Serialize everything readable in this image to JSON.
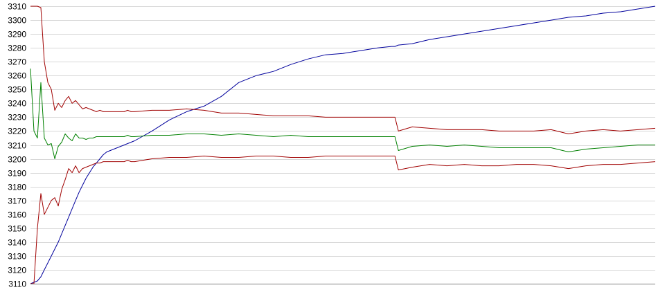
{
  "chart_data": {
    "type": "line",
    "title": "",
    "xlabel": "",
    "ylabel": "",
    "ylim": [
      3110,
      3310
    ],
    "xlim": [
      0,
      180
    ],
    "y_ticks": [
      "3110",
      "3120",
      "3130",
      "3140",
      "3150",
      "3160",
      "3170",
      "3180",
      "3190",
      "3200",
      "3210",
      "3220",
      "3230",
      "3240",
      "3250",
      "3260",
      "3270",
      "3280",
      "3290",
      "3300",
      "3310"
    ],
    "grid": true,
    "legend": "none",
    "x": [
      0,
      1,
      2,
      3,
      4,
      5,
      6,
      7,
      8,
      9,
      10,
      11,
      12,
      13,
      14,
      15,
      16,
      17,
      18,
      19,
      20,
      21,
      22,
      23,
      24,
      25,
      26,
      27,
      28,
      29,
      30,
      35,
      40,
      45,
      50,
      55,
      60,
      65,
      70,
      75,
      80,
      85,
      90,
      95,
      100,
      104,
      105,
      106,
      110,
      115,
      120,
      125,
      130,
      135,
      140,
      145,
      150,
      155,
      160,
      165,
      170,
      175,
      180
    ],
    "series": [
      {
        "color": "#00009c",
        "values": [
          3110,
          3111,
          3112,
          3115,
          3120,
          3125,
          3130,
          3135,
          3140,
          3146,
          3152,
          3158,
          3164,
          3170,
          3176,
          3181,
          3186,
          3190,
          3194,
          3197,
          3200,
          3203,
          3205,
          3206,
          3207,
          3208,
          3209,
          3210,
          3211,
          3212,
          3213,
          3220,
          3228,
          3234,
          3238,
          3245,
          3255,
          3260,
          3263,
          3268,
          3272,
          3275,
          3276,
          3278,
          3280,
          3281,
          3281,
          3282,
          3283,
          3286,
          3288,
          3290,
          3292,
          3294,
          3296,
          3298,
          3300,
          3302,
          3303,
          3305,
          3306,
          3308,
          3310
        ]
      },
      {
        "color": "#a00000",
        "values": [
          3310,
          3310,
          3310,
          3309,
          3270,
          3255,
          3250,
          3235,
          3240,
          3237,
          3242,
          3245,
          3240,
          3242,
          3239,
          3236,
          3237,
          3236,
          3235,
          3234,
          3235,
          3234,
          3234,
          3234,
          3234,
          3234,
          3234,
          3234,
          3235,
          3234,
          3234,
          3235,
          3235,
          3236,
          3235,
          3233,
          3233,
          3232,
          3231,
          3231,
          3231,
          3230,
          3230,
          3230,
          3230,
          3230,
          3230,
          3220,
          3223,
          3222,
          3221,
          3221,
          3221,
          3220,
          3220,
          3220,
          3221,
          3218,
          3220,
          3221,
          3220,
          3221,
          3222
        ]
      },
      {
        "color": "#008000",
        "values": [
          3265,
          3220,
          3215,
          3255,
          3215,
          3210,
          3211,
          3200,
          3209,
          3212,
          3218,
          3215,
          3213,
          3218,
          3215,
          3215,
          3214,
          3215,
          3215,
          3216,
          3216,
          3216,
          3216,
          3216,
          3216,
          3216,
          3216,
          3216,
          3217,
          3216,
          3216,
          3217,
          3217,
          3218,
          3218,
          3217,
          3218,
          3217,
          3216,
          3217,
          3216,
          3216,
          3216,
          3216,
          3216,
          3216,
          3216,
          3206,
          3209,
          3210,
          3209,
          3210,
          3209,
          3208,
          3208,
          3208,
          3208,
          3205,
          3207,
          3208,
          3209,
          3210,
          3210
        ]
      },
      {
        "color": "#a00000",
        "values": [
          3110,
          3110,
          3150,
          3175,
          3160,
          3165,
          3170,
          3172,
          3166,
          3178,
          3185,
          3193,
          3190,
          3195,
          3190,
          3193,
          3194,
          3195,
          3196,
          3197,
          3197,
          3198,
          3198,
          3198,
          3198,
          3198,
          3198,
          3198,
          3199,
          3198,
          3198,
          3200,
          3201,
          3201,
          3202,
          3201,
          3201,
          3202,
          3202,
          3201,
          3201,
          3202,
          3202,
          3202,
          3202,
          3202,
          3202,
          3192,
          3194,
          3196,
          3195,
          3196,
          3195,
          3195,
          3196,
          3196,
          3195,
          3193,
          3195,
          3196,
          3196,
          3197,
          3198
        ]
      }
    ]
  }
}
